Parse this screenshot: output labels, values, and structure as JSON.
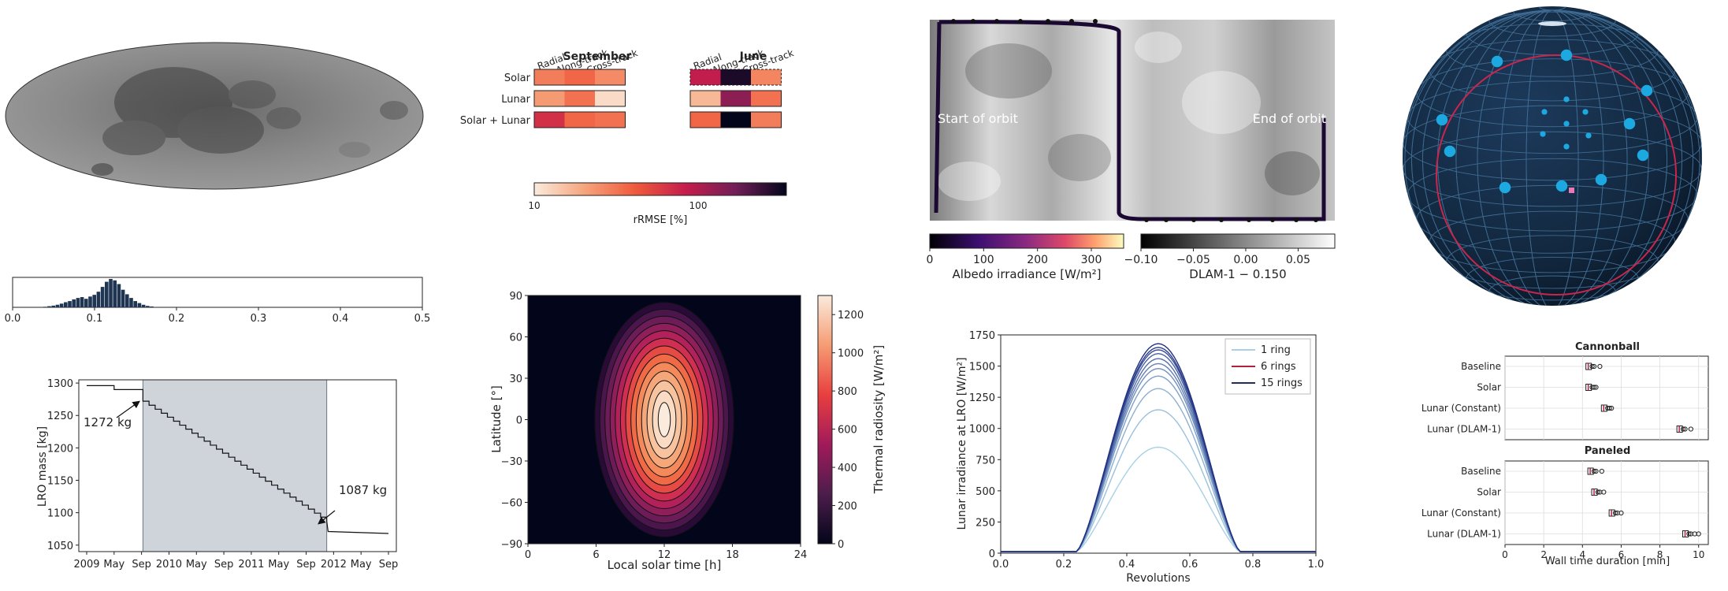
{
  "mass_chart": {
    "ylabel": "LRO mass [kg]",
    "yticks": [
      1050,
      1100,
      1150,
      1200,
      1250,
      1300
    ],
    "xticks": [
      "2009",
      "May",
      "Sep",
      "2010",
      "May",
      "Sep",
      "2011",
      "May",
      "Sep",
      "2012",
      "May",
      "Sep"
    ],
    "annotations": [
      "1272 kg",
      "1087 kg"
    ]
  },
  "histogram": {
    "xticks": [
      "0.0",
      "0.1",
      "0.2",
      "0.3",
      "0.4",
      "0.5"
    ]
  },
  "heatmap": {
    "col_groups": [
      "September",
      "June"
    ],
    "columns": [
      "Radial",
      "Along-track",
      "Cross-track"
    ],
    "rows": [
      "Solar",
      "Lunar",
      "Solar + Lunar"
    ],
    "colorbar_label": "rRMSE [%]",
    "colorbar_ticks": [
      "10",
      "100"
    ]
  },
  "radiosity": {
    "xlabel": "Local solar time [h]",
    "ylabel": "Latitude [°]",
    "xticks": [
      "0",
      "6",
      "12",
      "18",
      "24"
    ],
    "yticks": [
      "90",
      "60",
      "30",
      "0",
      "−30",
      "−60",
      "−90"
    ],
    "colorbar_label": "Thermal radiosity [W/m²]",
    "colorbar_ticks": [
      "0",
      "200",
      "400",
      "600",
      "800",
      "1000",
      "1200"
    ]
  },
  "albedo_map": {
    "left_label": "Start of orbit",
    "right_label": "End of orbit",
    "cbar1_label": "Albedo irradiance [W/m²]",
    "cbar1_ticks": [
      "0",
      "100",
      "200",
      "300"
    ],
    "cbar2_label": "DLAM-1 − 0.150",
    "cbar2_ticks": [
      "−0.10",
      "−0.05",
      "0.00",
      "0.05"
    ]
  },
  "irradiance": {
    "xlabel": "Revolutions",
    "ylabel": "Lunar irradiance at LRO [W/m²]",
    "xticks": [
      "0.0",
      "0.2",
      "0.4",
      "0.6",
      "0.8",
      "1.0"
    ],
    "yticks": [
      "0",
      "250",
      "500",
      "750",
      "1000",
      "1250",
      "1500",
      "1750"
    ],
    "legend": [
      "1 ring",
      "6 rings",
      "15 rings"
    ]
  },
  "boxplots": {
    "title_top": "Cannonball",
    "title_bottom": "Paneled",
    "categories": [
      "Baseline",
      "Solar",
      "Lunar (Constant)",
      "Lunar (DLAM-1)"
    ],
    "xticks": [
      "0",
      "2",
      "4",
      "6",
      "8",
      "10"
    ],
    "xlabel": "Wall time duration [min]"
  },
  "chart_data": [
    {
      "type": "line",
      "ylabel": "LRO mass [kg]",
      "ylim": [
        1040,
        1305
      ],
      "x_months_from_jan2009": [
        0,
        4,
        8,
        8.2,
        35,
        35.2,
        44
      ],
      "y": [
        1296,
        1296,
        1290,
        1272,
        1087,
        1071,
        1068
      ],
      "annotations": [
        {
          "text": "1272 kg",
          "x": 8.2,
          "y": 1272
        },
        {
          "text": "1087 kg",
          "x": 35,
          "y": 1087
        }
      ],
      "shaded_interval_months": [
        8.2,
        35
      ]
    },
    {
      "type": "bar",
      "xlim": [
        0,
        0.5
      ],
      "x": [
        0.04,
        0.045,
        0.05,
        0.055,
        0.06,
        0.065,
        0.07,
        0.075,
        0.08,
        0.085,
        0.09,
        0.095,
        0.1,
        0.105,
        0.11,
        0.115,
        0.12,
        0.125,
        0.13,
        0.135,
        0.14,
        0.145,
        0.15,
        0.155,
        0.16,
        0.165,
        0.17,
        0.175
      ],
      "values": [
        2,
        4,
        6,
        9,
        13,
        18,
        22,
        28,
        33,
        36,
        30,
        38,
        44,
        55,
        72,
        90,
        100,
        95,
        82,
        62,
        46,
        33,
        22,
        15,
        9,
        5,
        3,
        1
      ]
    },
    {
      "type": "heatmap",
      "col_groups": [
        "September",
        "June"
      ],
      "columns": [
        "Radial",
        "Along-track",
        "Cross-track"
      ],
      "rows": [
        "Solar",
        "Lunar",
        "Solar + Lunar"
      ],
      "values_percent": {
        "September": [
          [
            35,
            45,
            30
          ],
          [
            25,
            40,
            12
          ],
          [
            90,
            45,
            40
          ]
        ],
        "June": [
          [
            120,
            500,
            32
          ],
          [
            18,
            200,
            40
          ],
          [
            45,
            600,
            35
          ]
        ]
      },
      "colorbar_range": [
        10,
        600
      ]
    },
    {
      "type": "heatmap",
      "xlabel": "Local solar time [h]",
      "ylabel": "Latitude [°]",
      "xlim": [
        0,
        24
      ],
      "ylim": [
        -90,
        90
      ],
      "peak": {
        "x": 12,
        "y": 0,
        "value": 1300
      },
      "colorbar_range": [
        0,
        1300
      ]
    },
    {
      "type": "line",
      "xlabel": "Revolutions",
      "ylabel": "Lunar irradiance at LRO [W/m²]",
      "xlim": [
        0,
        1
      ],
      "ylim": [
        0,
        1750
      ],
      "series": [
        {
          "name": "1 ring",
          "peak": 850
        },
        {
          "peak": 1150
        },
        {
          "peak": 1320
        },
        {
          "peak": 1420
        },
        {
          "peak": 1480
        },
        {
          "name": "6 rings",
          "peak": 1520
        },
        {
          "peak": 1560
        },
        {
          "peak": 1600
        },
        {
          "peak": 1630
        },
        {
          "peak": 1650
        },
        {
          "name": "15 rings",
          "peak": 1680
        }
      ]
    },
    {
      "type": "box",
      "xlabel": "Wall time duration [min]",
      "xlim": [
        0,
        10.5
      ],
      "categories": [
        "Baseline",
        "Solar",
        "Lunar (Constant)",
        "Lunar (DLAM-1)"
      ],
      "groups": [
        {
          "title": "Cannonball",
          "medians": [
            4.3,
            4.3,
            5.1,
            9.0
          ],
          "outliers": [
            [
              4.5,
              4.6,
              4.9
            ],
            [
              4.5,
              4.6,
              4.7
            ],
            [
              5.3,
              5.4,
              5.5
            ],
            [
              9.2,
              9.3,
              9.6
            ]
          ]
        },
        {
          "title": "Paneled",
          "medians": [
            4.4,
            4.6,
            5.5,
            9.3
          ],
          "outliers": [
            [
              4.6,
              4.7,
              5.0
            ],
            [
              4.8,
              4.9,
              5.1
            ],
            [
              5.7,
              5.8,
              6.0
            ],
            [
              9.5,
              9.6,
              9.8,
              10.0
            ]
          ]
        }
      ]
    }
  ]
}
